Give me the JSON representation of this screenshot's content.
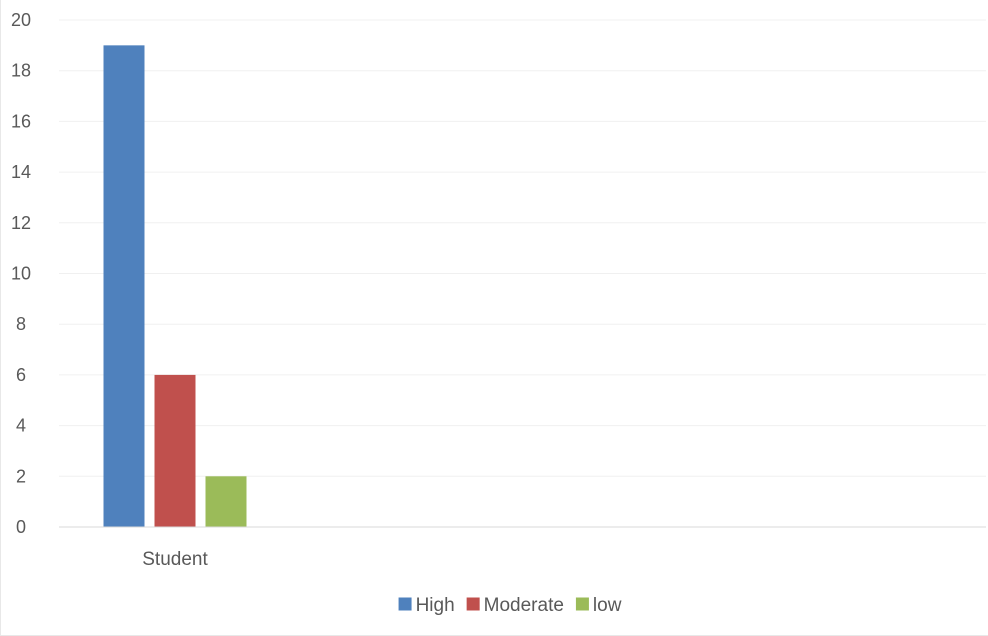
{
  "chart_data": {
    "type": "bar",
    "title": "",
    "xlabel": "",
    "ylabel": "",
    "categories": [
      "Student"
    ],
    "series": [
      {
        "name": "High",
        "values": [
          19
        ],
        "color": "#4f81bd"
      },
      {
        "name": "Moderate",
        "values": [
          6
        ],
        "color": "#c0504d"
      },
      {
        "name": "low",
        "values": [
          2
        ],
        "color": "#9bbb59"
      }
    ],
    "ylim": [
      0,
      20
    ],
    "yticks": [
      "0",
      "2",
      "4",
      "6",
      "8",
      "10",
      "12",
      "14",
      "16",
      "18",
      "20"
    ],
    "grid": true,
    "legend_position": "bottom"
  }
}
